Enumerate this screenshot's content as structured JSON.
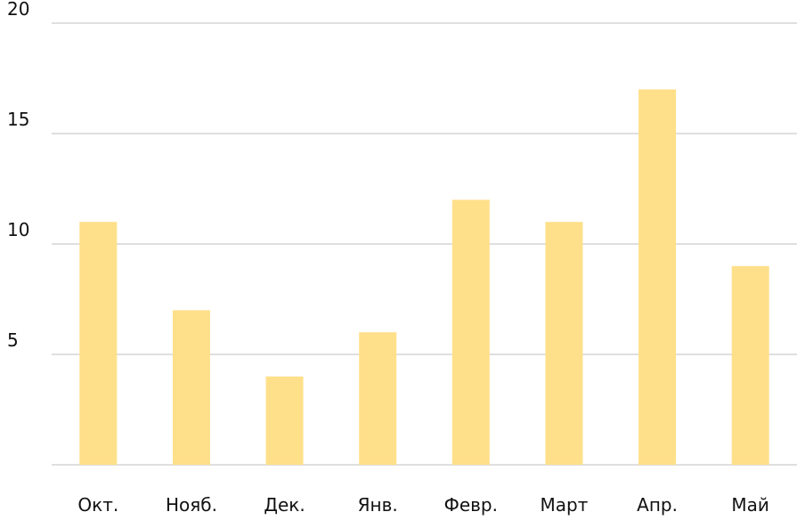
{
  "chart_data": {
    "type": "bar",
    "title": "",
    "xlabel": "",
    "ylabel": "",
    "categories": [
      "Окт.",
      "Нояб.",
      "Дек.",
      "Янв.",
      "Февр.",
      "Март",
      "Апр.",
      "Май"
    ],
    "series": [
      {
        "values": [
          11,
          7,
          4,
          6,
          12,
          11,
          17,
          9
        ],
        "color": "#FFE08A"
      }
    ],
    "ylim": [
      0,
      20
    ],
    "yticks": [
      5,
      10,
      15,
      20
    ],
    "grid": true,
    "legend": "none",
    "colors": {
      "bar": "#FFE08A",
      "gridline": "#BFBFBF",
      "baseline": "#BFBFBF",
      "text": "#111111"
    }
  }
}
